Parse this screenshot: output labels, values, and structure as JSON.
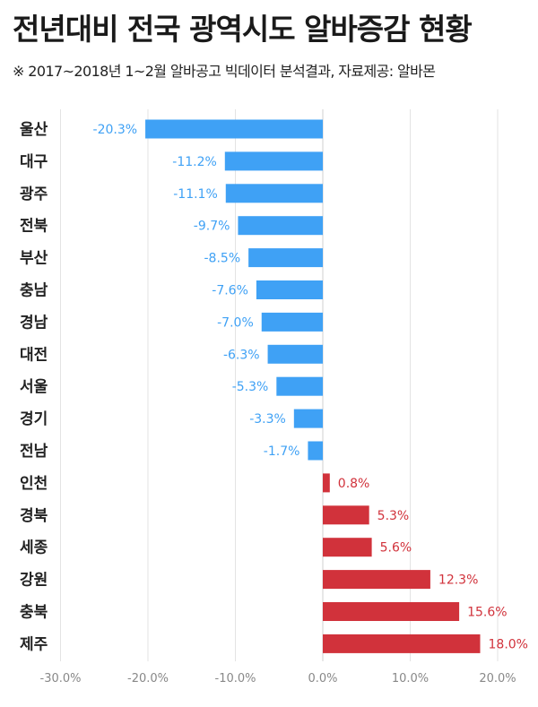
{
  "header": {
    "title": "전년대비 전국 광역시도 알바증감 현황",
    "subtitle": "※ 2017~2018년 1~2월 알바공고 빅데이터 분석결과,  자료제공: 알바몬"
  },
  "colors": {
    "negative": "#3fa1f5",
    "positive": "#d1323b",
    "grid": "#e3e3e3",
    "tick_text": "#888888"
  },
  "chart_data": {
    "type": "bar",
    "orientation": "horizontal",
    "title": "전년대비 전국 광역시도 알바증감 현황",
    "categories": [
      "울산",
      "대구",
      "광주",
      "전북",
      "부산",
      "충남",
      "경남",
      "대전",
      "서울",
      "경기",
      "전남",
      "인천",
      "경북",
      "세종",
      "강원",
      "충북",
      "제주"
    ],
    "values": [
      -20.3,
      -11.2,
      -11.1,
      -9.7,
      -8.5,
      -7.6,
      -7.0,
      -6.3,
      -5.3,
      -3.3,
      -1.7,
      0.8,
      5.3,
      5.6,
      12.3,
      15.6,
      18.0
    ],
    "labels": [
      "-20.3%",
      "-11.2%",
      "-11.1%",
      "-9.7%",
      "-8.5%",
      "-7.6%",
      "-7.0%",
      "-6.3%",
      "-5.3%",
      "-3.3%",
      "-1.7%",
      "0.8%",
      "5.3%",
      "5.6%",
      "12.3%",
      "15.6%",
      "18.0%"
    ],
    "x_ticks": [
      -30,
      -20,
      -10,
      0,
      10,
      20
    ],
    "x_tick_labels": [
      "-30.0%",
      "-20.0%",
      "-10.0%",
      "0.0%",
      "10.0%",
      "20.0%"
    ],
    "xlim": [
      -30,
      20
    ],
    "grid": true,
    "xlabel": "",
    "ylabel": ""
  }
}
